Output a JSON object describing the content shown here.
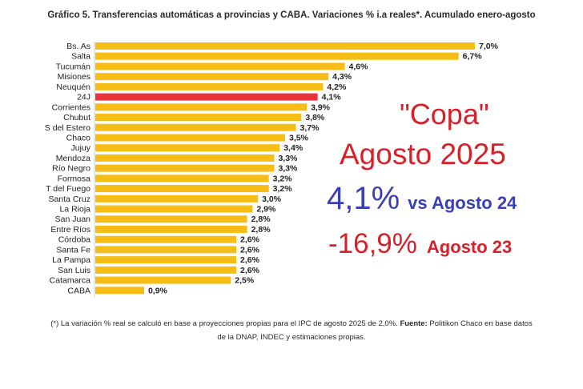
{
  "title": "Gráfico 5. Transferencias automáticas a provincias y CABA. Variaciones % i.a reales*. Acumulado enero-agosto",
  "chart_data": {
    "type": "bar",
    "orientation": "horizontal",
    "categories": [
      "Bs. As",
      "Salta",
      "Tucumán",
      "Misiones",
      "Neuquén",
      "24J",
      "Corrientes",
      "Chubut",
      "S del Estero",
      "Chaco",
      "Jujuy",
      "Mendoza",
      "Río Negro",
      "Formosa",
      "T del Fuego",
      "Santa Cruz",
      "La Rioja",
      "San Juan",
      "Entre Ríos",
      "Córdoba",
      "Santa Fe",
      "La Pampa",
      "San Luis",
      "Catamarca",
      "CABA"
    ],
    "values": [
      7.0,
      6.7,
      4.6,
      4.3,
      4.2,
      4.1,
      3.9,
      3.8,
      3.7,
      3.5,
      3.4,
      3.3,
      3.3,
      3.2,
      3.2,
      3.0,
      2.9,
      2.8,
      2.8,
      2.6,
      2.6,
      2.6,
      2.6,
      2.5,
      0.9
    ],
    "value_labels": [
      "7,0%",
      "6,7%",
      "4,6%",
      "4,3%",
      "4,2%",
      "4,1%",
      "3,9%",
      "3,8%",
      "3,7%",
      "3,5%",
      "3,4%",
      "3,3%",
      "3,3%",
      "3,2%",
      "3,2%",
      "3,0%",
      "2,9%",
      "2,8%",
      "2,8%",
      "2,6%",
      "2,6%",
      "2,6%",
      "2,6%",
      "2,5%",
      "0,9%"
    ],
    "highlight": "24J",
    "xlim": [
      0,
      7.0
    ],
    "grid": false,
    "colors": {
      "bar": "#f5bd16",
      "highlight": "#e8323c"
    }
  },
  "overlay": {
    "copa": "\"Copa\"",
    "month": "Agosto 2025",
    "pct1": "4,1%",
    "pct1_label": "vs Agosto 24",
    "pct2": "-16,9%",
    "pct2_label": "Agosto 23",
    "colors": {
      "red": "#d8202a",
      "blue": "#3b3fb5"
    }
  },
  "footnote": {
    "prefix": "(*) La variación % real se calculó en base a proyecciones propias para el IPC de agosto 2025 de 2,0%.",
    "source_label": "Fuente:",
    "source_text": "Politikon Chaco en base datos",
    "line2": "de la DNAP, INDEC y estimaciones propias."
  }
}
